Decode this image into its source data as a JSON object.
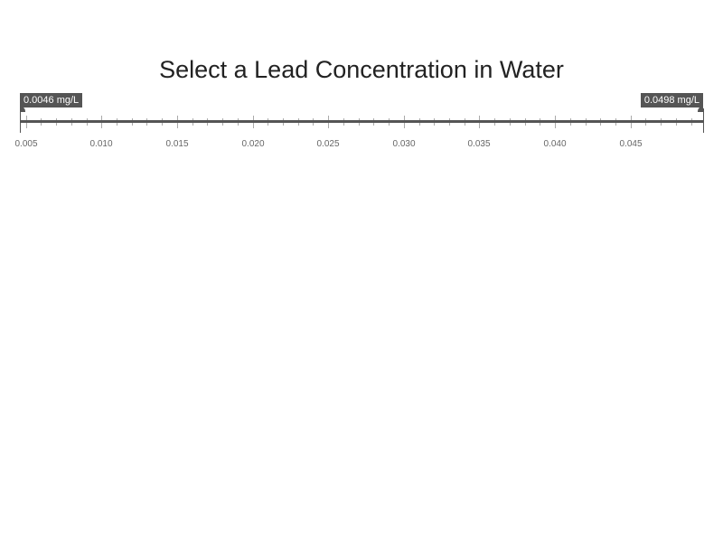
{
  "title": "Select a Lead Concentration in Water",
  "slider": {
    "min": 0.0046,
    "max": 0.0498,
    "from_value": 0.0046,
    "to_value": 0.0498,
    "from_label": "0.0046 mg/L",
    "to_label": "0.0498 mg/L",
    "unit": "mg/L",
    "major_ticks": [
      "0.005",
      "0.010",
      "0.015",
      "0.020",
      "0.025",
      "0.030",
      "0.035",
      "0.040",
      "0.045"
    ],
    "minor_step": 0.001,
    "colors": {
      "handle": "#555555",
      "track": "#555555",
      "tick": "#aaaaaa",
      "tick_label": "#666666"
    }
  }
}
